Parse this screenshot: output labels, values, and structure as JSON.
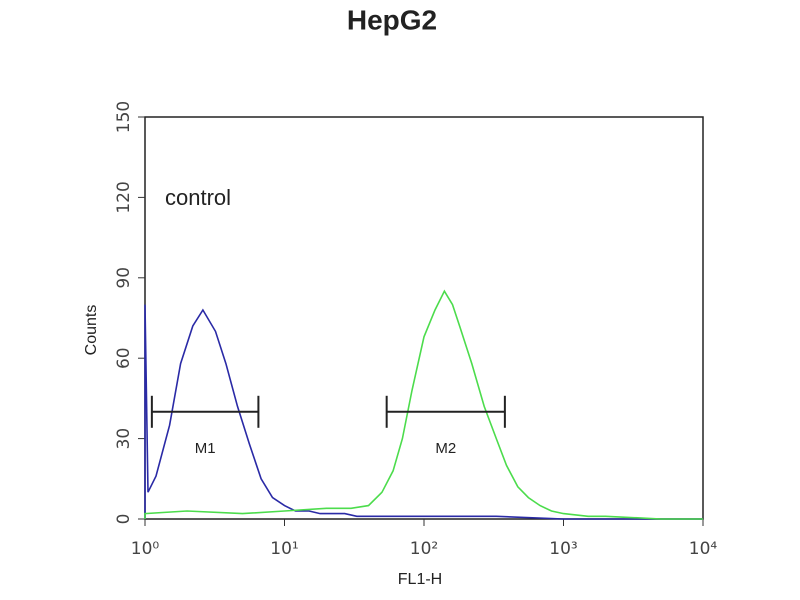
{
  "chart_data": {
    "type": "histogram-line",
    "title": "HepG2",
    "xlabel": "FL1-H",
    "ylabel": "Counts",
    "annotation": "control",
    "xscale": "log",
    "xlim": [
      1,
      10000
    ],
    "xticks": [
      {
        "value": 1,
        "label": "10⁰"
      },
      {
        "value": 10,
        "label": "10¹"
      },
      {
        "value": 100,
        "label": "10²"
      },
      {
        "value": 1000,
        "label": "10³"
      },
      {
        "value": 10000,
        "label": "10⁴"
      }
    ],
    "ylim": [
      0,
      150
    ],
    "yticks": [
      0,
      30,
      60,
      90,
      120,
      150
    ],
    "series": [
      {
        "color": "#2a2aa6",
        "x": [
          1,
          1.05,
          1.2,
          1.5,
          1.8,
          2.2,
          2.6,
          3.2,
          3.8,
          4.6,
          5.6,
          6.8,
          8.2,
          10,
          12,
          15,
          18,
          22,
          27,
          33,
          47,
          68,
          100,
          150,
          220,
          330,
          1000,
          10000
        ],
        "values": [
          80,
          10,
          16,
          35,
          58,
          72,
          78,
          70,
          58,
          42,
          28,
          15,
          8,
          5,
          3,
          3,
          2,
          2,
          2,
          1,
          1,
          1,
          1,
          1,
          1,
          1,
          0,
          0
        ]
      },
      {
        "color": "#4cdc4c",
        "x": [
          1,
          2,
          5,
          10,
          20,
          30,
          40,
          50,
          60,
          70,
          82,
          100,
          120,
          140,
          160,
          180,
          220,
          270,
          330,
          390,
          470,
          560,
          680,
          820,
          1000,
          1500,
          2000,
          5000,
          10000
        ],
        "values": [
          2,
          3,
          2,
          3,
          4,
          4,
          5,
          10,
          18,
          30,
          48,
          68,
          78,
          85,
          80,
          72,
          58,
          42,
          30,
          20,
          12,
          8,
          5,
          3,
          2,
          1,
          1,
          0,
          0
        ]
      }
    ],
    "markers": [
      {
        "name": "M1",
        "range": [
          1.12,
          6.5
        ],
        "y": 40
      },
      {
        "name": "M2",
        "range": [
          54,
          380
        ],
        "y": 40
      }
    ]
  }
}
